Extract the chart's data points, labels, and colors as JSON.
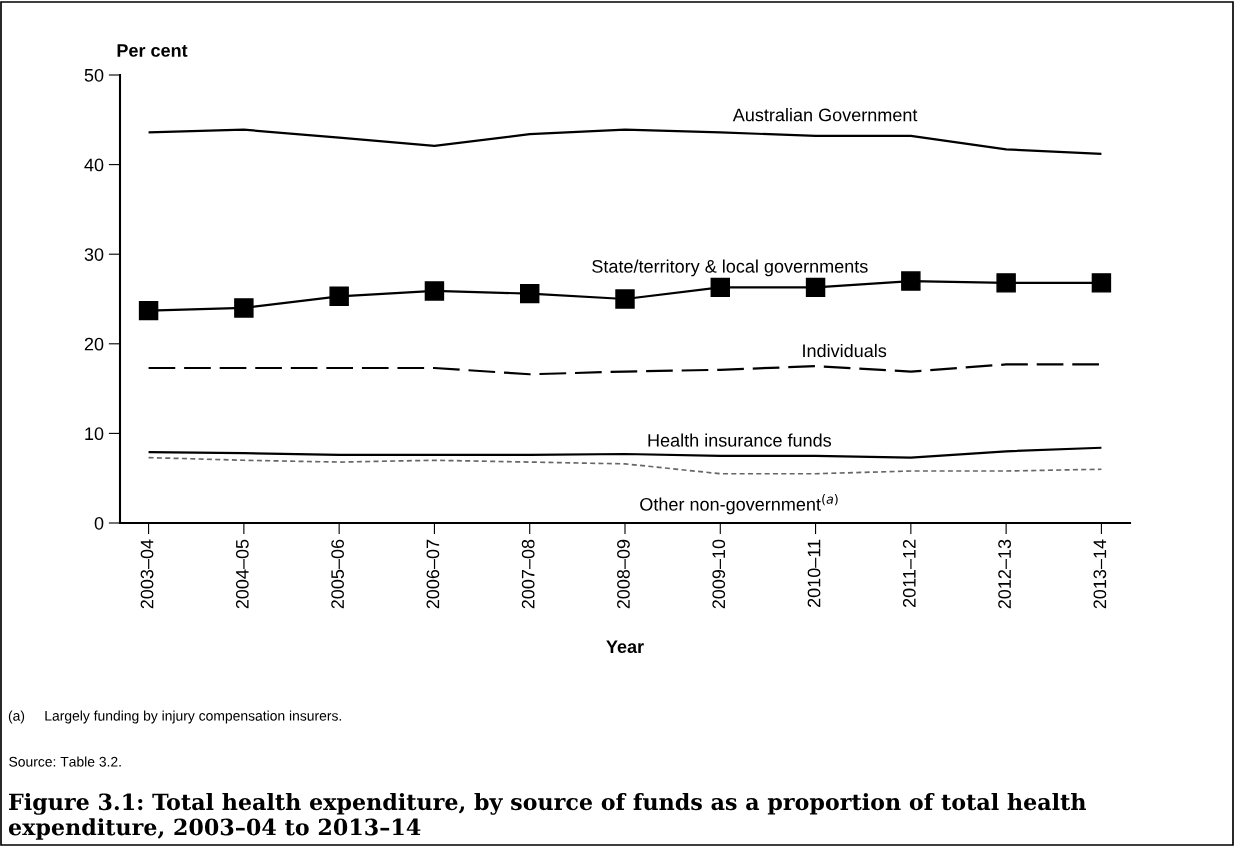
{
  "chart_data": {
    "type": "line",
    "title": "Figure 3.1: Total health expenditure, by source of funds as a proportion of total health expenditure, 2003–04 to 2013–14",
    "xlabel": "Year",
    "ylabel": "Per cent",
    "categories": [
      "2003–04",
      "2004–05",
      "2005–06",
      "2006–07",
      "2007–08",
      "2008–09",
      "2009–10",
      "2010–11",
      "2011–12",
      "2012–13",
      "2013–14"
    ],
    "series": [
      {
        "name": "Australian Government",
        "color": "#000000",
        "line_style": "solid",
        "marker": "none",
        "values": [
          43.6,
          43.9,
          43.0,
          42.1,
          43.4,
          43.9,
          43.6,
          43.2,
          43.2,
          41.7,
          41.2
        ]
      },
      {
        "name": "State/territory & local governments",
        "color": "#000000",
        "line_style": "solid",
        "marker": "square",
        "values": [
          23.7,
          24.0,
          25.3,
          25.9,
          25.6,
          25.0,
          26.3,
          26.3,
          27.0,
          26.8,
          26.8
        ]
      },
      {
        "name": "Individuals",
        "color": "#000000",
        "line_style": "dashed",
        "marker": "none",
        "values": [
          17.3,
          17.3,
          17.3,
          17.3,
          16.6,
          16.9,
          17.1,
          17.5,
          16.9,
          17.7,
          17.7
        ]
      },
      {
        "name": "Health insurance funds",
        "color": "#000000",
        "line_style": "solid",
        "marker": "none",
        "values": [
          7.9,
          7.8,
          7.6,
          7.6,
          7.6,
          7.7,
          7.5,
          7.5,
          7.3,
          8.0,
          8.4
        ]
      },
      {
        "name": "Other non-government$^{(a)}$",
        "color": "#666666",
        "line_style": "dotted",
        "marker": "none",
        "values": [
          7.3,
          7.0,
          6.8,
          7.0,
          6.8,
          6.6,
          5.5,
          5.5,
          5.8,
          5.8,
          6.0
        ]
      }
    ],
    "ylim": [
      0,
      50
    ],
    "yticks": [
      0,
      10,
      20,
      30,
      40,
      50
    ],
    "grid": false,
    "legend": false,
    "annotations": [
      "(a)     Largely funding by injury compensation insurers.",
      "$_{}$Source: Table 3.2."
    ]
  }
}
